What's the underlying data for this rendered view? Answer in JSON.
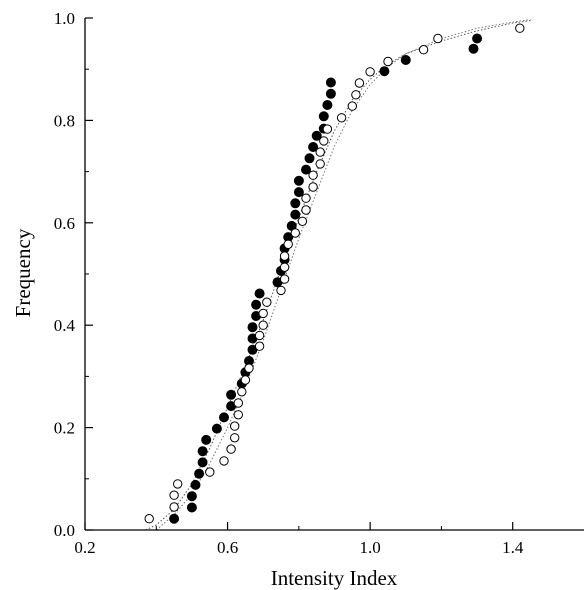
{
  "chart_data": {
    "type": "scatter",
    "xlabel": "Intensity Index",
    "ylabel": "Frequency",
    "xlim": [
      0.2,
      1.6
    ],
    "ylim": [
      0.0,
      1.0
    ],
    "x_ticks": [
      0.2,
      0.6,
      1.0,
      1.4
    ],
    "y_ticks": [
      0.0,
      0.2,
      0.4,
      0.6,
      0.8,
      1.0
    ],
    "x_tick_labels": [
      "0.2",
      "0.6",
      "1.0",
      "1.4"
    ],
    "y_tick_labels": [
      "0.0",
      "0.2",
      "0.4",
      "0.6",
      "0.8",
      "1.0"
    ],
    "grid": false,
    "series": [
      {
        "marker": "filled-circle",
        "color": "#000000",
        "points": [
          [
            0.45,
            0.022
          ],
          [
            0.5,
            0.044
          ],
          [
            0.5,
            0.066
          ],
          [
            0.51,
            0.088
          ],
          [
            0.52,
            0.11
          ],
          [
            0.53,
            0.132
          ],
          [
            0.53,
            0.154
          ],
          [
            0.54,
            0.176
          ],
          [
            0.57,
            0.198
          ],
          [
            0.59,
            0.22
          ],
          [
            0.61,
            0.242
          ],
          [
            0.61,
            0.264
          ],
          [
            0.64,
            0.286
          ],
          [
            0.65,
            0.308
          ],
          [
            0.66,
            0.33
          ],
          [
            0.67,
            0.352
          ],
          [
            0.67,
            0.374
          ],
          [
            0.67,
            0.396
          ],
          [
            0.68,
            0.418
          ],
          [
            0.68,
            0.44
          ],
          [
            0.69,
            0.462
          ],
          [
            0.74,
            0.484
          ],
          [
            0.75,
            0.506
          ],
          [
            0.76,
            0.528
          ],
          [
            0.76,
            0.55
          ],
          [
            0.77,
            0.572
          ],
          [
            0.78,
            0.594
          ],
          [
            0.79,
            0.616
          ],
          [
            0.79,
            0.638
          ],
          [
            0.8,
            0.66
          ],
          [
            0.8,
            0.682
          ],
          [
            0.82,
            0.704
          ],
          [
            0.83,
            0.726
          ],
          [
            0.84,
            0.748
          ],
          [
            0.85,
            0.77
          ],
          [
            0.87,
            0.784
          ],
          [
            0.87,
            0.808
          ],
          [
            0.88,
            0.83
          ],
          [
            0.89,
            0.852
          ],
          [
            0.89,
            0.874
          ],
          [
            1.04,
            0.896
          ],
          [
            1.1,
            0.918
          ],
          [
            1.29,
            0.94
          ],
          [
            1.3,
            0.96
          ]
        ]
      },
      {
        "marker": "open-circle",
        "color": "#000000",
        "points": [
          [
            0.38,
            0.022
          ],
          [
            0.45,
            0.045
          ],
          [
            0.45,
            0.068
          ],
          [
            0.46,
            0.09
          ],
          [
            0.55,
            0.113
          ],
          [
            0.59,
            0.135
          ],
          [
            0.61,
            0.158
          ],
          [
            0.62,
            0.18
          ],
          [
            0.62,
            0.203
          ],
          [
            0.63,
            0.225
          ],
          [
            0.63,
            0.248
          ],
          [
            0.64,
            0.27
          ],
          [
            0.65,
            0.293
          ],
          [
            0.66,
            0.316
          ],
          [
            0.69,
            0.359
          ],
          [
            0.69,
            0.38
          ],
          [
            0.7,
            0.4
          ],
          [
            0.7,
            0.423
          ],
          [
            0.71,
            0.445
          ],
          [
            0.75,
            0.468
          ],
          [
            0.76,
            0.49
          ],
          [
            0.76,
            0.513
          ],
          [
            0.76,
            0.535
          ],
          [
            0.77,
            0.558
          ],
          [
            0.79,
            0.58
          ],
          [
            0.81,
            0.603
          ],
          [
            0.82,
            0.625
          ],
          [
            0.82,
            0.648
          ],
          [
            0.84,
            0.67
          ],
          [
            0.84,
            0.693
          ],
          [
            0.86,
            0.715
          ],
          [
            0.86,
            0.738
          ],
          [
            0.87,
            0.76
          ],
          [
            0.88,
            0.783
          ],
          [
            0.92,
            0.805
          ],
          [
            0.95,
            0.828
          ],
          [
            0.96,
            0.85
          ],
          [
            0.97,
            0.873
          ],
          [
            1.0,
            0.895
          ],
          [
            1.05,
            0.915
          ],
          [
            1.15,
            0.938
          ],
          [
            1.19,
            0.96
          ],
          [
            1.42,
            0.98
          ]
        ]
      }
    ],
    "fit_curves": [
      {
        "style": "dotted",
        "color": "#555555",
        "points": [
          [
            0.37,
            0.0
          ],
          [
            0.4,
            0.01
          ],
          [
            0.45,
            0.04
          ],
          [
            0.5,
            0.09
          ],
          [
            0.55,
            0.16
          ],
          [
            0.6,
            0.24
          ],
          [
            0.65,
            0.32
          ],
          [
            0.7,
            0.41
          ],
          [
            0.75,
            0.51
          ],
          [
            0.8,
            0.61
          ],
          [
            0.85,
            0.7
          ],
          [
            0.9,
            0.78
          ],
          [
            0.95,
            0.84
          ],
          [
            1.0,
            0.88
          ],
          [
            1.05,
            0.91
          ],
          [
            1.1,
            0.93
          ],
          [
            1.2,
            0.955
          ],
          [
            1.3,
            0.975
          ],
          [
            1.4,
            0.99
          ],
          [
            1.45,
            0.995
          ]
        ]
      },
      {
        "style": "dotted",
        "color": "#777777",
        "points": [
          [
            0.4,
            0.0
          ],
          [
            0.45,
            0.03
          ],
          [
            0.5,
            0.07
          ],
          [
            0.55,
            0.13
          ],
          [
            0.6,
            0.2
          ],
          [
            0.65,
            0.28
          ],
          [
            0.7,
            0.37
          ],
          [
            0.75,
            0.47
          ],
          [
            0.8,
            0.57
          ],
          [
            0.85,
            0.66
          ],
          [
            0.9,
            0.75
          ],
          [
            0.95,
            0.82
          ],
          [
            1.0,
            0.87
          ],
          [
            1.05,
            0.905
          ],
          [
            1.1,
            0.93
          ],
          [
            1.2,
            0.96
          ],
          [
            1.3,
            0.98
          ],
          [
            1.4,
            0.992
          ],
          [
            1.45,
            0.997
          ]
        ]
      }
    ]
  }
}
